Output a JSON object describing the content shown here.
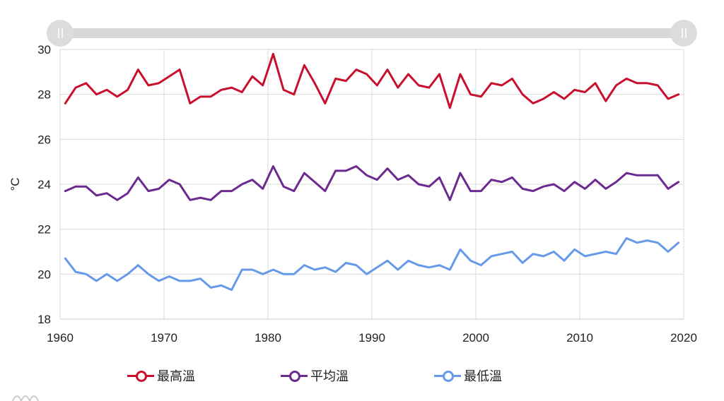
{
  "chart_data": {
    "type": "line",
    "ylabel": "°C",
    "xlim": [
      1960,
      2020
    ],
    "ylim": [
      18,
      30
    ],
    "x_ticks": [
      "1960",
      "1970",
      "1980",
      "1990",
      "2000",
      "2010",
      "2020"
    ],
    "y_ticks": [
      "18",
      "20",
      "22",
      "24",
      "26",
      "28",
      "30"
    ],
    "grid": true,
    "legend_position": "bottom",
    "range_slider": true,
    "x": [
      1961,
      1962,
      1963,
      1964,
      1965,
      1966,
      1967,
      1968,
      1969,
      1970,
      1971,
      1972,
      1973,
      1974,
      1975,
      1976,
      1977,
      1978,
      1979,
      1980,
      1981,
      1982,
      1983,
      1984,
      1985,
      1986,
      1987,
      1988,
      1989,
      1990,
      1991,
      1992,
      1993,
      1994,
      1995,
      1996,
      1997,
      1998,
      1999,
      2000,
      2001,
      2002,
      2003,
      2004,
      2005,
      2006,
      2007,
      2008,
      2009,
      2010,
      2011,
      2012,
      2013,
      2014,
      2015,
      2016,
      2017,
      2018,
      2019,
      2020
    ],
    "series": [
      {
        "name": "最高溫",
        "color": "#c8102e",
        "values": [
          27.6,
          28.3,
          28.5,
          28.0,
          28.2,
          27.9,
          28.2,
          29.1,
          28.4,
          28.5,
          28.8,
          29.1,
          27.6,
          27.9,
          27.9,
          28.2,
          28.3,
          28.1,
          28.8,
          28.4,
          29.8,
          28.2,
          28.0,
          29.3,
          28.5,
          27.6,
          28.7,
          28.6,
          29.1,
          28.9,
          28.4,
          29.1,
          28.3,
          28.9,
          28.4,
          28.3,
          28.9,
          27.4,
          28.9,
          28.0,
          27.9,
          28.5,
          28.4,
          28.7,
          28.0,
          27.6,
          27.8,
          28.1,
          27.8,
          28.2,
          28.1,
          28.5,
          27.7,
          28.4,
          28.7,
          28.5,
          28.5,
          28.4,
          27.8,
          28.0
        ]
      },
      {
        "name": "平均溫",
        "color": "#6b2a8f",
        "values": [
          23.7,
          23.9,
          23.9,
          23.5,
          23.6,
          23.3,
          23.6,
          24.3,
          23.7,
          23.8,
          24.2,
          24.0,
          23.3,
          23.4,
          23.3,
          23.7,
          23.7,
          24.0,
          24.2,
          23.8,
          24.8,
          23.9,
          23.7,
          24.5,
          24.1,
          23.7,
          24.6,
          24.6,
          24.8,
          24.4,
          24.2,
          24.7,
          24.2,
          24.4,
          24.0,
          23.9,
          24.3,
          23.3,
          24.5,
          23.7,
          23.7,
          24.2,
          24.1,
          24.3,
          23.8,
          23.7,
          23.9,
          24.0,
          23.7,
          24.1,
          23.8,
          24.2,
          23.8,
          24.1,
          24.5,
          24.4,
          24.4,
          24.4,
          23.8,
          24.1
        ]
      },
      {
        "name": "最低溫",
        "color": "#6699e8",
        "values": [
          20.7,
          20.1,
          20.0,
          19.7,
          20.0,
          19.7,
          20.0,
          20.4,
          20.0,
          19.7,
          19.9,
          19.7,
          19.7,
          19.8,
          19.4,
          19.5,
          19.3,
          20.2,
          20.2,
          20.0,
          20.2,
          20.0,
          20.0,
          20.4,
          20.2,
          20.3,
          20.1,
          20.5,
          20.4,
          20.0,
          20.3,
          20.6,
          20.2,
          20.6,
          20.4,
          20.3,
          20.4,
          20.2,
          21.1,
          20.6,
          20.4,
          20.8,
          20.9,
          21.0,
          20.5,
          20.9,
          20.8,
          21.0,
          20.6,
          21.1,
          20.8,
          20.9,
          21.0,
          20.9,
          21.6,
          21.4,
          21.5,
          21.4,
          21.0,
          21.4
        ]
      }
    ]
  }
}
